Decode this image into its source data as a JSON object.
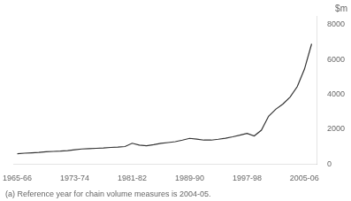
{
  "chart_data": {
    "type": "line",
    "x": [
      1965,
      1966,
      1967,
      1968,
      1969,
      1970,
      1971,
      1972,
      1973,
      1974,
      1975,
      1976,
      1977,
      1978,
      1979,
      1980,
      1981,
      1982,
      1983,
      1984,
      1985,
      1986,
      1987,
      1988,
      1989,
      1990,
      1991,
      1992,
      1993,
      1994,
      1995,
      1996,
      1997,
      1998,
      1999,
      2000,
      2001,
      2002,
      2003,
      2004,
      2005,
      2006
    ],
    "values": [
      600,
      630,
      650,
      670,
      710,
      730,
      750,
      780,
      830,
      870,
      890,
      910,
      930,
      960,
      980,
      1010,
      1200,
      1090,
      1060,
      1120,
      1190,
      1240,
      1290,
      1380,
      1480,
      1440,
      1380,
      1380,
      1430,
      1490,
      1570,
      1660,
      1760,
      1620,
      1950,
      2750,
      3150,
      3450,
      3850,
      4450,
      5450,
      6900
    ],
    "color": "#333333",
    "xlim": [
      1964.5,
      2006.8
    ],
    "xticks": [
      {
        "value": 1965,
        "label": "1965-66"
      },
      {
        "value": 1973,
        "label": "1973-74"
      },
      {
        "value": 1981,
        "label": "1981-82"
      },
      {
        "value": 1989,
        "label": "1989-90"
      },
      {
        "value": 1997,
        "label": "1997-98"
      },
      {
        "value": 2005,
        "label": "2005-06"
      }
    ],
    "ylim": [
      0,
      8500
    ],
    "yticks": [
      0,
      2000,
      4000,
      6000,
      8000
    ],
    "y_label": "$m",
    "footnote": "(a) Reference year for chain volume measures is 2004-05.",
    "grid": false
  }
}
